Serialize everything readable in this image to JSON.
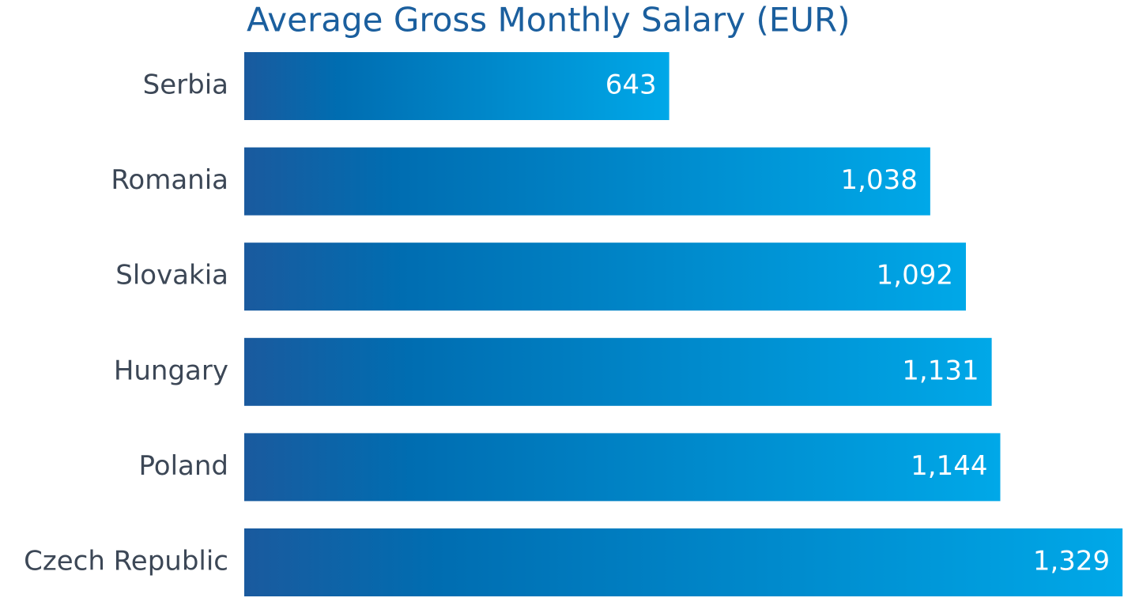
{
  "chart_data": {
    "type": "bar",
    "orientation": "horizontal",
    "title": "Average Gross Monthly Salary (EUR)",
    "categories": [
      "Serbia",
      "Romania",
      "Slovakia",
      "Hungary",
      "Poland",
      "Czech Republic"
    ],
    "values": [
      643,
      1038,
      1092,
      1131,
      1144,
      1329
    ],
    "value_labels": [
      "643",
      "1,038",
      "1,092",
      "1,131",
      "1,144",
      "1,329"
    ],
    "xlim": [
      0,
      1330
    ],
    "color": [
      "#1a5a9e",
      "#006db1",
      "#00a8e8"
    ]
  }
}
